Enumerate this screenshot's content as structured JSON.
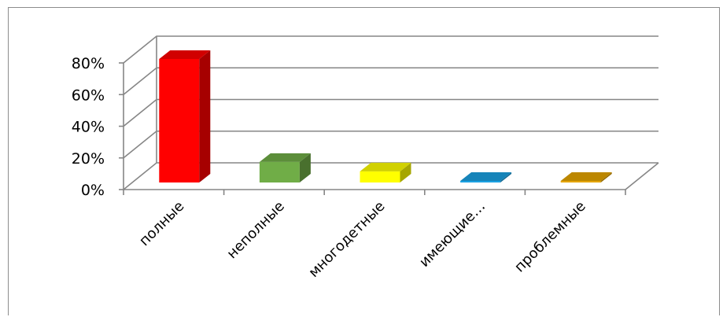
{
  "chart_data": {
    "type": "bar",
    "title": "",
    "xlabel": "",
    "ylabel": "",
    "categories": [
      "полные",
      "неполные",
      "многодетные",
      "имеющие…",
      "проблемные"
    ],
    "values": [
      78,
      13,
      7,
      1,
      1
    ],
    "value_unit": "%",
    "ylim": [
      0,
      80
    ],
    "yticks": [
      "0%",
      "20%",
      "40%",
      "60%",
      "80%"
    ],
    "grid": true,
    "legend": "none",
    "colors": [
      "#ff0000",
      "#70ad47",
      "#ffff00",
      "#1ba1e2",
      "#e5a500"
    ]
  }
}
